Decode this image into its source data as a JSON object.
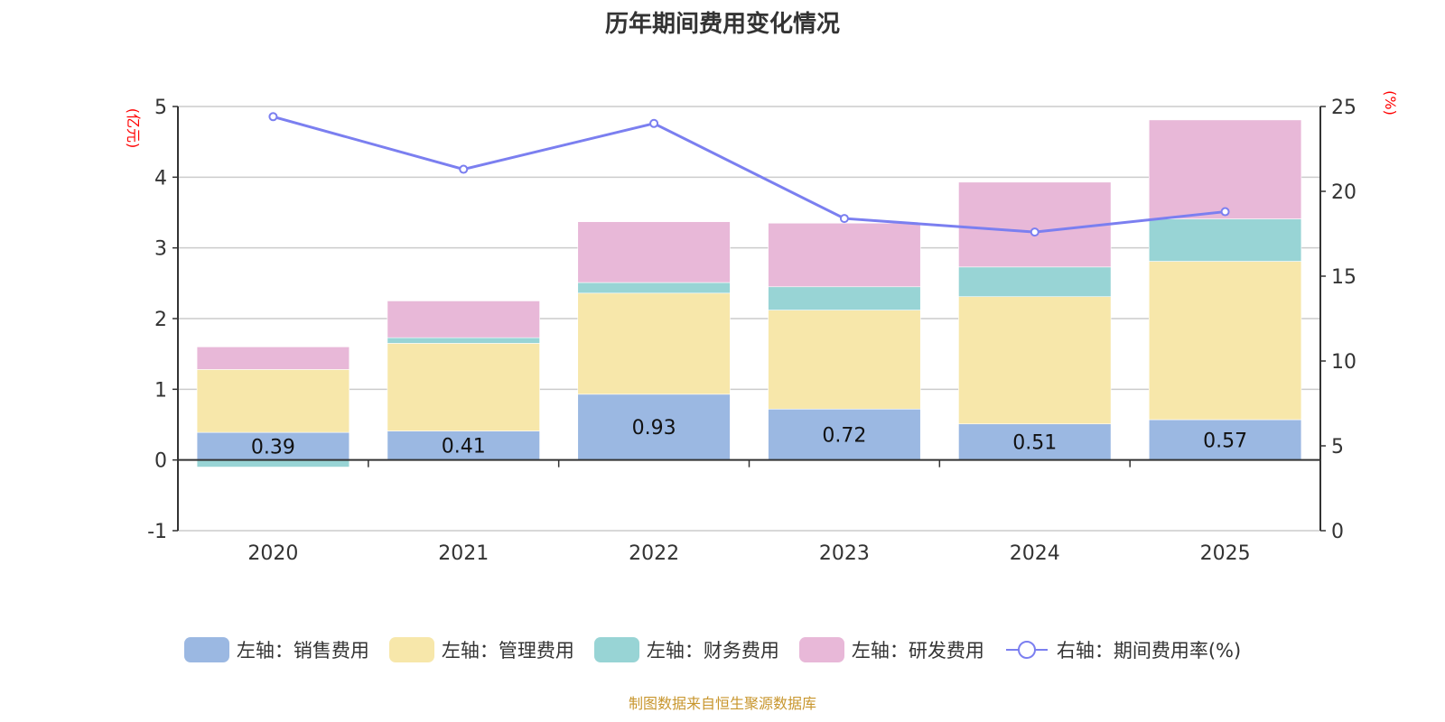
{
  "chart_data": {
    "type": "bar",
    "stacked": true,
    "title": "历年期间费用变化情况",
    "categories": [
      "2020",
      "2021",
      "2022",
      "2023",
      "2024",
      "2025"
    ],
    "left_axis": {
      "label": "(亿元)",
      "ylim": [
        -1,
        5
      ],
      "ticks": [
        -1,
        0,
        1,
        2,
        3,
        4,
        5
      ]
    },
    "right_axis": {
      "label": "(%)",
      "ylim": [
        0,
        25
      ],
      "ticks": [
        0,
        5,
        10,
        15,
        20,
        25
      ]
    },
    "grid": true,
    "legend_position": "bottom",
    "series": [
      {
        "name": "左轴：销售费用",
        "axis": "left",
        "type": "bar",
        "color": "#9bb8e2",
        "values": [
          0.39,
          0.41,
          0.93,
          0.72,
          0.51,
          0.57
        ],
        "labels": [
          "0.39",
          "0.41",
          "0.93",
          "0.72",
          "0.51",
          "0.57"
        ]
      },
      {
        "name": "左轴：管理费用",
        "axis": "left",
        "type": "bar",
        "color": "#f7e7aa",
        "values": [
          0.89,
          1.24,
          1.43,
          1.4,
          1.8,
          2.24
        ]
      },
      {
        "name": "左轴：财务费用",
        "axis": "left",
        "type": "bar",
        "color": "#98d4d5",
        "values": [
          -0.1,
          0.08,
          0.15,
          0.33,
          0.42,
          0.6
        ]
      },
      {
        "name": "左轴：研发费用",
        "axis": "left",
        "type": "bar",
        "color": "#e8b8d8",
        "values": [
          0.32,
          0.52,
          0.86,
          0.9,
          1.2,
          1.4
        ]
      },
      {
        "name": "右轴：期间费用率(%)",
        "axis": "right",
        "type": "line",
        "color": "#7b7ff0",
        "values": [
          24.4,
          21.3,
          24.0,
          18.4,
          17.6,
          18.8
        ]
      }
    ]
  },
  "footer": "制图数据来自恒生聚源数据库"
}
